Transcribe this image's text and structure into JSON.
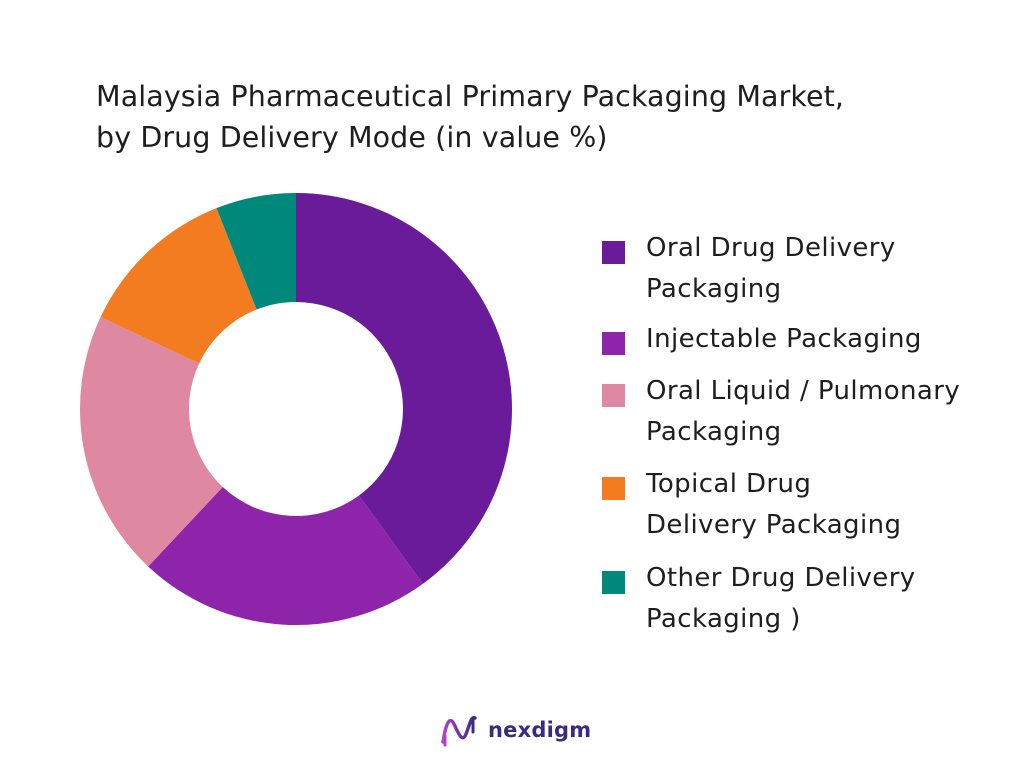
{
  "chart_data": {
    "type": "pie",
    "title_lines": [
      "Malaysia Pharmaceutical Primary Packaging Market,",
      "by Drug Delivery Mode (in value %)"
    ],
    "legend_position": "right",
    "series": [
      {
        "name": "Oral Drug Delivery Packaging",
        "label_lines": [
          "Oral Drug Delivery",
          "Packaging"
        ],
        "value": 40,
        "color": "#6a1b9a"
      },
      {
        "name": "Injectable Packaging",
        "label_lines": [
          "Injectable Packaging"
        ],
        "value": 22,
        "color": "#8e24aa"
      },
      {
        "name": "Oral Liquid / Pulmonary Packaging",
        "label_lines": [
          "Oral Liquid / Pulmonary",
          "Packaging"
        ],
        "value": 20,
        "color": "#df88a2"
      },
      {
        "name": "Topical Drug Delivery Packaging",
        "label_lines": [
          "Topical Drug",
          "Delivery Packaging"
        ],
        "value": 12,
        "color": "#f47c20"
      },
      {
        "name": "Other Drug Delivery Packaging )",
        "label_lines": [
          "Other Drug Delivery",
          "Packaging )"
        ],
        "value": 6,
        "color": "#00897b"
      }
    ]
  },
  "logo": {
    "text": "nexdigm",
    "colors": {
      "primary": "#3b2a82",
      "accent": "#b341c7"
    }
  }
}
